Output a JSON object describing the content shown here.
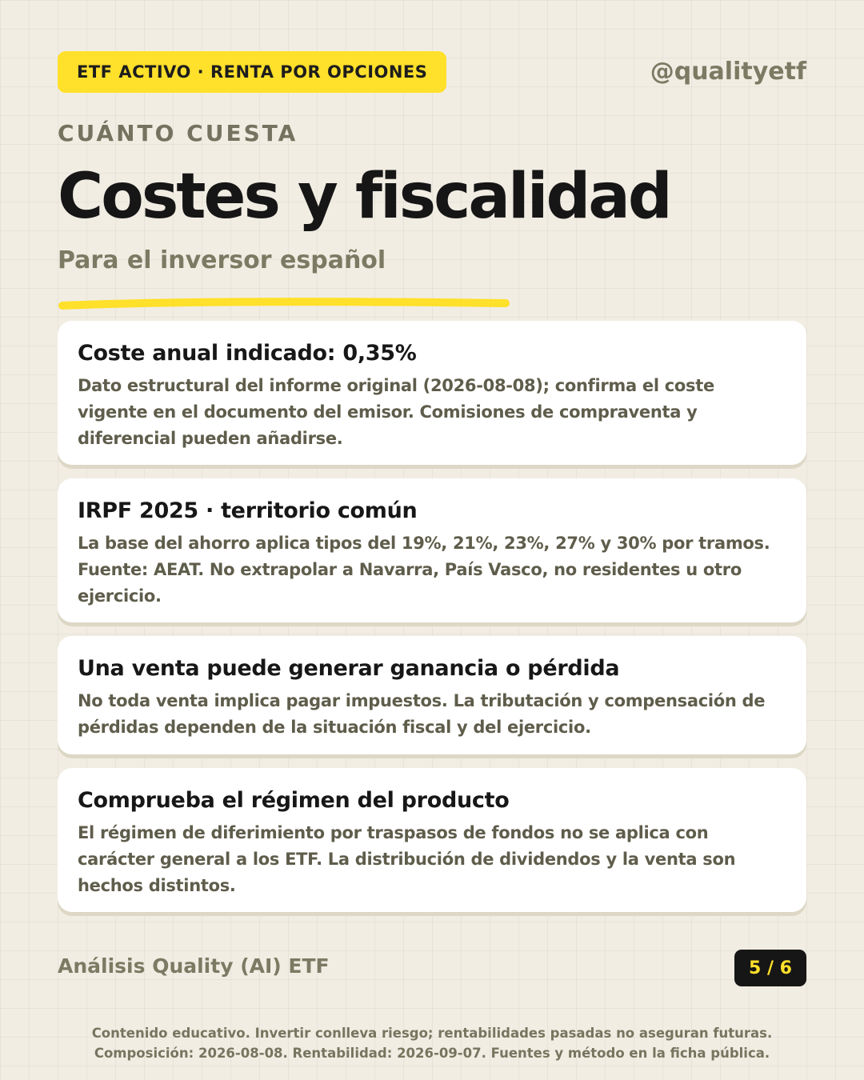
{
  "header": {
    "badge": "ETF ACTIVO · RENTA POR OPCIONES",
    "handle": "@qualityetf",
    "kicker": "CUÁNTO CUESTA",
    "title": "Costes y fiscalidad",
    "subtitle": "Para el inversor español"
  },
  "cards": [
    {
      "title": "Coste anual indicado: 0,35%",
      "body": "Dato estructural del informe original (2026-08-08); confirma el coste vigente en el documento del emisor. Comisiones de compraventa y diferencial pueden añadirse."
    },
    {
      "title": "IRPF 2025 · territorio común",
      "body": "La base del ahorro aplica tipos del 19%, 21%, 23%, 27% y 30% por tramos. Fuente: AEAT. No extrapolar a Navarra, País Vasco, no residentes u otro ejercicio."
    },
    {
      "title": "Una venta puede generar ganancia o pérdida",
      "body": "No toda venta implica pagar impuestos. La tributación y compensación de pérdidas dependen de la situación fiscal y del ejercicio."
    },
    {
      "title": "Comprueba el régimen del producto",
      "body": "El régimen de diferimiento por traspasos de fondos no se aplica con carácter general a los ETF. La distribución de dividendos y la venta son hechos distintos."
    }
  ],
  "footer": {
    "brand": "Análisis Quality (AI) ETF",
    "page": "5 / 6",
    "disclaimer_line1": "Contenido educativo. Invertir conlleva riesgo; rentabilidades pasadas no aseguran futuras.",
    "disclaimer_line2": "Composición: 2026-08-08. Rentabilidad: 2026-09-07. Fuentes y método en la ficha pública."
  },
  "colors": {
    "background": "#f1ede3",
    "accent_yellow": "#ffe02a",
    "text_dark": "#171717",
    "text_muted": "#7c7a63",
    "card_body": "#5f5d4b",
    "card_bg": "#ffffff"
  }
}
